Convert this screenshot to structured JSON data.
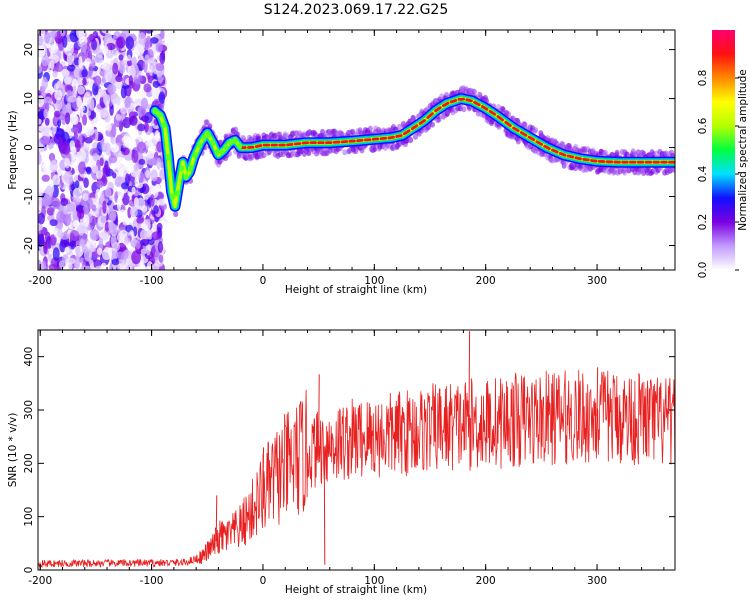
{
  "title": "S124.2023.069.17.22.G25",
  "chart_data": [
    {
      "type": "heatmap",
      "xlabel": "Height of straight line (km)",
      "ylabel": "Frequency (Hz)",
      "xlim": [
        -202,
        370
      ],
      "ylim": [
        -25,
        24
      ],
      "xticks": [
        -200,
        -100,
        0,
        100,
        200,
        300
      ],
      "yticks": [
        20,
        10,
        0,
        -10,
        -20
      ],
      "colorbar": {
        "label": "Normalized spectral amplitude",
        "range": [
          0,
          1
        ],
        "ticks": [
          "0.0",
          "0.2",
          "0.4",
          "0.6",
          "0.8"
        ],
        "colors": [
          "#ffffff",
          "#c39bff",
          "#7a00e0",
          "#1010ff",
          "#00e0ff",
          "#00ff40",
          "#b4ff00",
          "#ffff00",
          "#ff8800",
          "#ff1010",
          "#ff0070"
        ]
      },
      "noise_region_x": [
        -202,
        -95
      ],
      "ridge": [
        {
          "x": -97,
          "y": 7.5
        },
        {
          "x": -92,
          "y": 6.5
        },
        {
          "x": -88,
          "y": 4
        },
        {
          "x": -85,
          "y": -2
        },
        {
          "x": -82,
          "y": -9
        },
        {
          "x": -79,
          "y": -12
        },
        {
          "x": -76,
          "y": -8
        },
        {
          "x": -72,
          "y": -3
        },
        {
          "x": -69,
          "y": -6
        },
        {
          "x": -66,
          "y": -5
        },
        {
          "x": -62,
          "y": -2
        },
        {
          "x": -56,
          "y": 1
        },
        {
          "x": -50,
          "y": 3
        },
        {
          "x": -45,
          "y": 1
        },
        {
          "x": -40,
          "y": -1.5
        },
        {
          "x": -35,
          "y": -0.5
        },
        {
          "x": -30,
          "y": 1
        },
        {
          "x": -25,
          "y": 1.5
        },
        {
          "x": -20,
          "y": 0
        },
        {
          "x": -10,
          "y": 0
        },
        {
          "x": 0,
          "y": 0.5
        },
        {
          "x": 20,
          "y": 0.5
        },
        {
          "x": 40,
          "y": 1
        },
        {
          "x": 60,
          "y": 1
        },
        {
          "x": 80,
          "y": 1.3
        },
        {
          "x": 100,
          "y": 1.7
        },
        {
          "x": 115,
          "y": 2
        },
        {
          "x": 125,
          "y": 2.5
        },
        {
          "x": 135,
          "y": 4
        },
        {
          "x": 145,
          "y": 5.5
        },
        {
          "x": 155,
          "y": 7.5
        },
        {
          "x": 165,
          "y": 9
        },
        {
          "x": 178,
          "y": 10
        },
        {
          "x": 188,
          "y": 9.5
        },
        {
          "x": 200,
          "y": 8
        },
        {
          "x": 210,
          "y": 6.5
        },
        {
          "x": 225,
          "y": 4
        },
        {
          "x": 240,
          "y": 2
        },
        {
          "x": 255,
          "y": 0
        },
        {
          "x": 270,
          "y": -1.5
        },
        {
          "x": 285,
          "y": -2.3
        },
        {
          "x": 300,
          "y": -2.8
        },
        {
          "x": 320,
          "y": -3
        },
        {
          "x": 340,
          "y": -3
        },
        {
          "x": 370,
          "y": -3
        }
      ]
    },
    {
      "type": "line",
      "xlabel": "Height of straight line (km)",
      "ylabel": "SNR (10 * v/v)",
      "xlim": [
        -202,
        370
      ],
      "ylim": [
        0,
        450
      ],
      "xticks": [
        -200,
        -100,
        0,
        100,
        200,
        300
      ],
      "yticks": [
        0,
        100,
        200,
        300,
        400
      ],
      "series": [
        {
          "color": "#e82020",
          "envelope": [
            {
              "x": -202,
              "y": 12
            },
            {
              "x": -100,
              "y": 13
            },
            {
              "x": -70,
              "y": 14
            },
            {
              "x": -55,
              "y": 25
            },
            {
              "x": -45,
              "y": 45
            },
            {
              "x": -40,
              "y": 60
            },
            {
              "x": -30,
              "y": 65
            },
            {
              "x": -20,
              "y": 80
            },
            {
              "x": -10,
              "y": 110
            },
            {
              "x": 0,
              "y": 145
            },
            {
              "x": 10,
              "y": 170
            },
            {
              "x": 20,
              "y": 190
            },
            {
              "x": 30,
              "y": 205
            },
            {
              "x": 40,
              "y": 220
            },
            {
              "x": 60,
              "y": 235
            },
            {
              "x": 80,
              "y": 245
            },
            {
              "x": 100,
              "y": 250
            },
            {
              "x": 120,
              "y": 255
            },
            {
              "x": 140,
              "y": 262
            },
            {
              "x": 160,
              "y": 268
            },
            {
              "x": 180,
              "y": 272
            },
            {
              "x": 200,
              "y": 275
            },
            {
              "x": 220,
              "y": 280
            },
            {
              "x": 240,
              "y": 283
            },
            {
              "x": 260,
              "y": 285
            },
            {
              "x": 280,
              "y": 287
            },
            {
              "x": 300,
              "y": 288
            },
            {
              "x": 320,
              "y": 287
            },
            {
              "x": 340,
              "y": 284
            },
            {
              "x": 360,
              "y": 275
            },
            {
              "x": 370,
              "y": 272
            }
          ],
          "spikes": [
            {
              "x": -42,
              "y": 140
            },
            {
              "x": 0,
              "y": 230
            },
            {
              "x": 50,
              "y": 367
            },
            {
              "x": 55,
              "y": 10
            },
            {
              "x": 185,
              "y": 448
            },
            {
              "x": 300,
              "y": 380
            }
          ]
        }
      ]
    }
  ]
}
